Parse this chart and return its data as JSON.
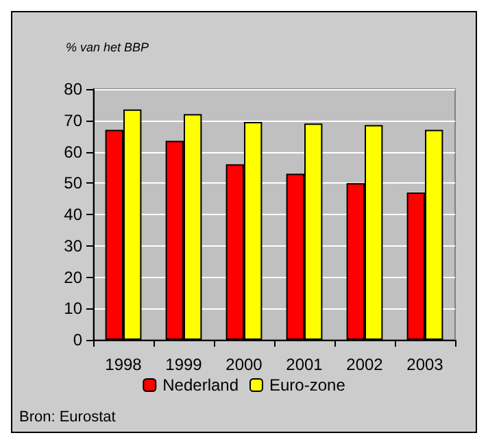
{
  "chart_data": {
    "type": "bar",
    "ylabel": "% van het BBP",
    "categories": [
      "1998",
      "1999",
      "2000",
      "2001",
      "2002",
      "2003"
    ],
    "series": [
      {
        "name": "Nederland",
        "color": "#ff0000",
        "values": [
          67,
          63.5,
          56,
          53,
          50,
          47
        ]
      },
      {
        "name": "Euro-zone",
        "color": "#ffff00",
        "values": [
          73.5,
          72,
          69.5,
          69,
          68.5,
          67
        ]
      }
    ],
    "ylim": [
      0,
      80
    ],
    "yticks": [
      0,
      10,
      20,
      30,
      40,
      50,
      60,
      70,
      80
    ],
    "grid": "y",
    "legend": "bottom",
    "annotations": [
      "Bron: Eurostat"
    ]
  }
}
